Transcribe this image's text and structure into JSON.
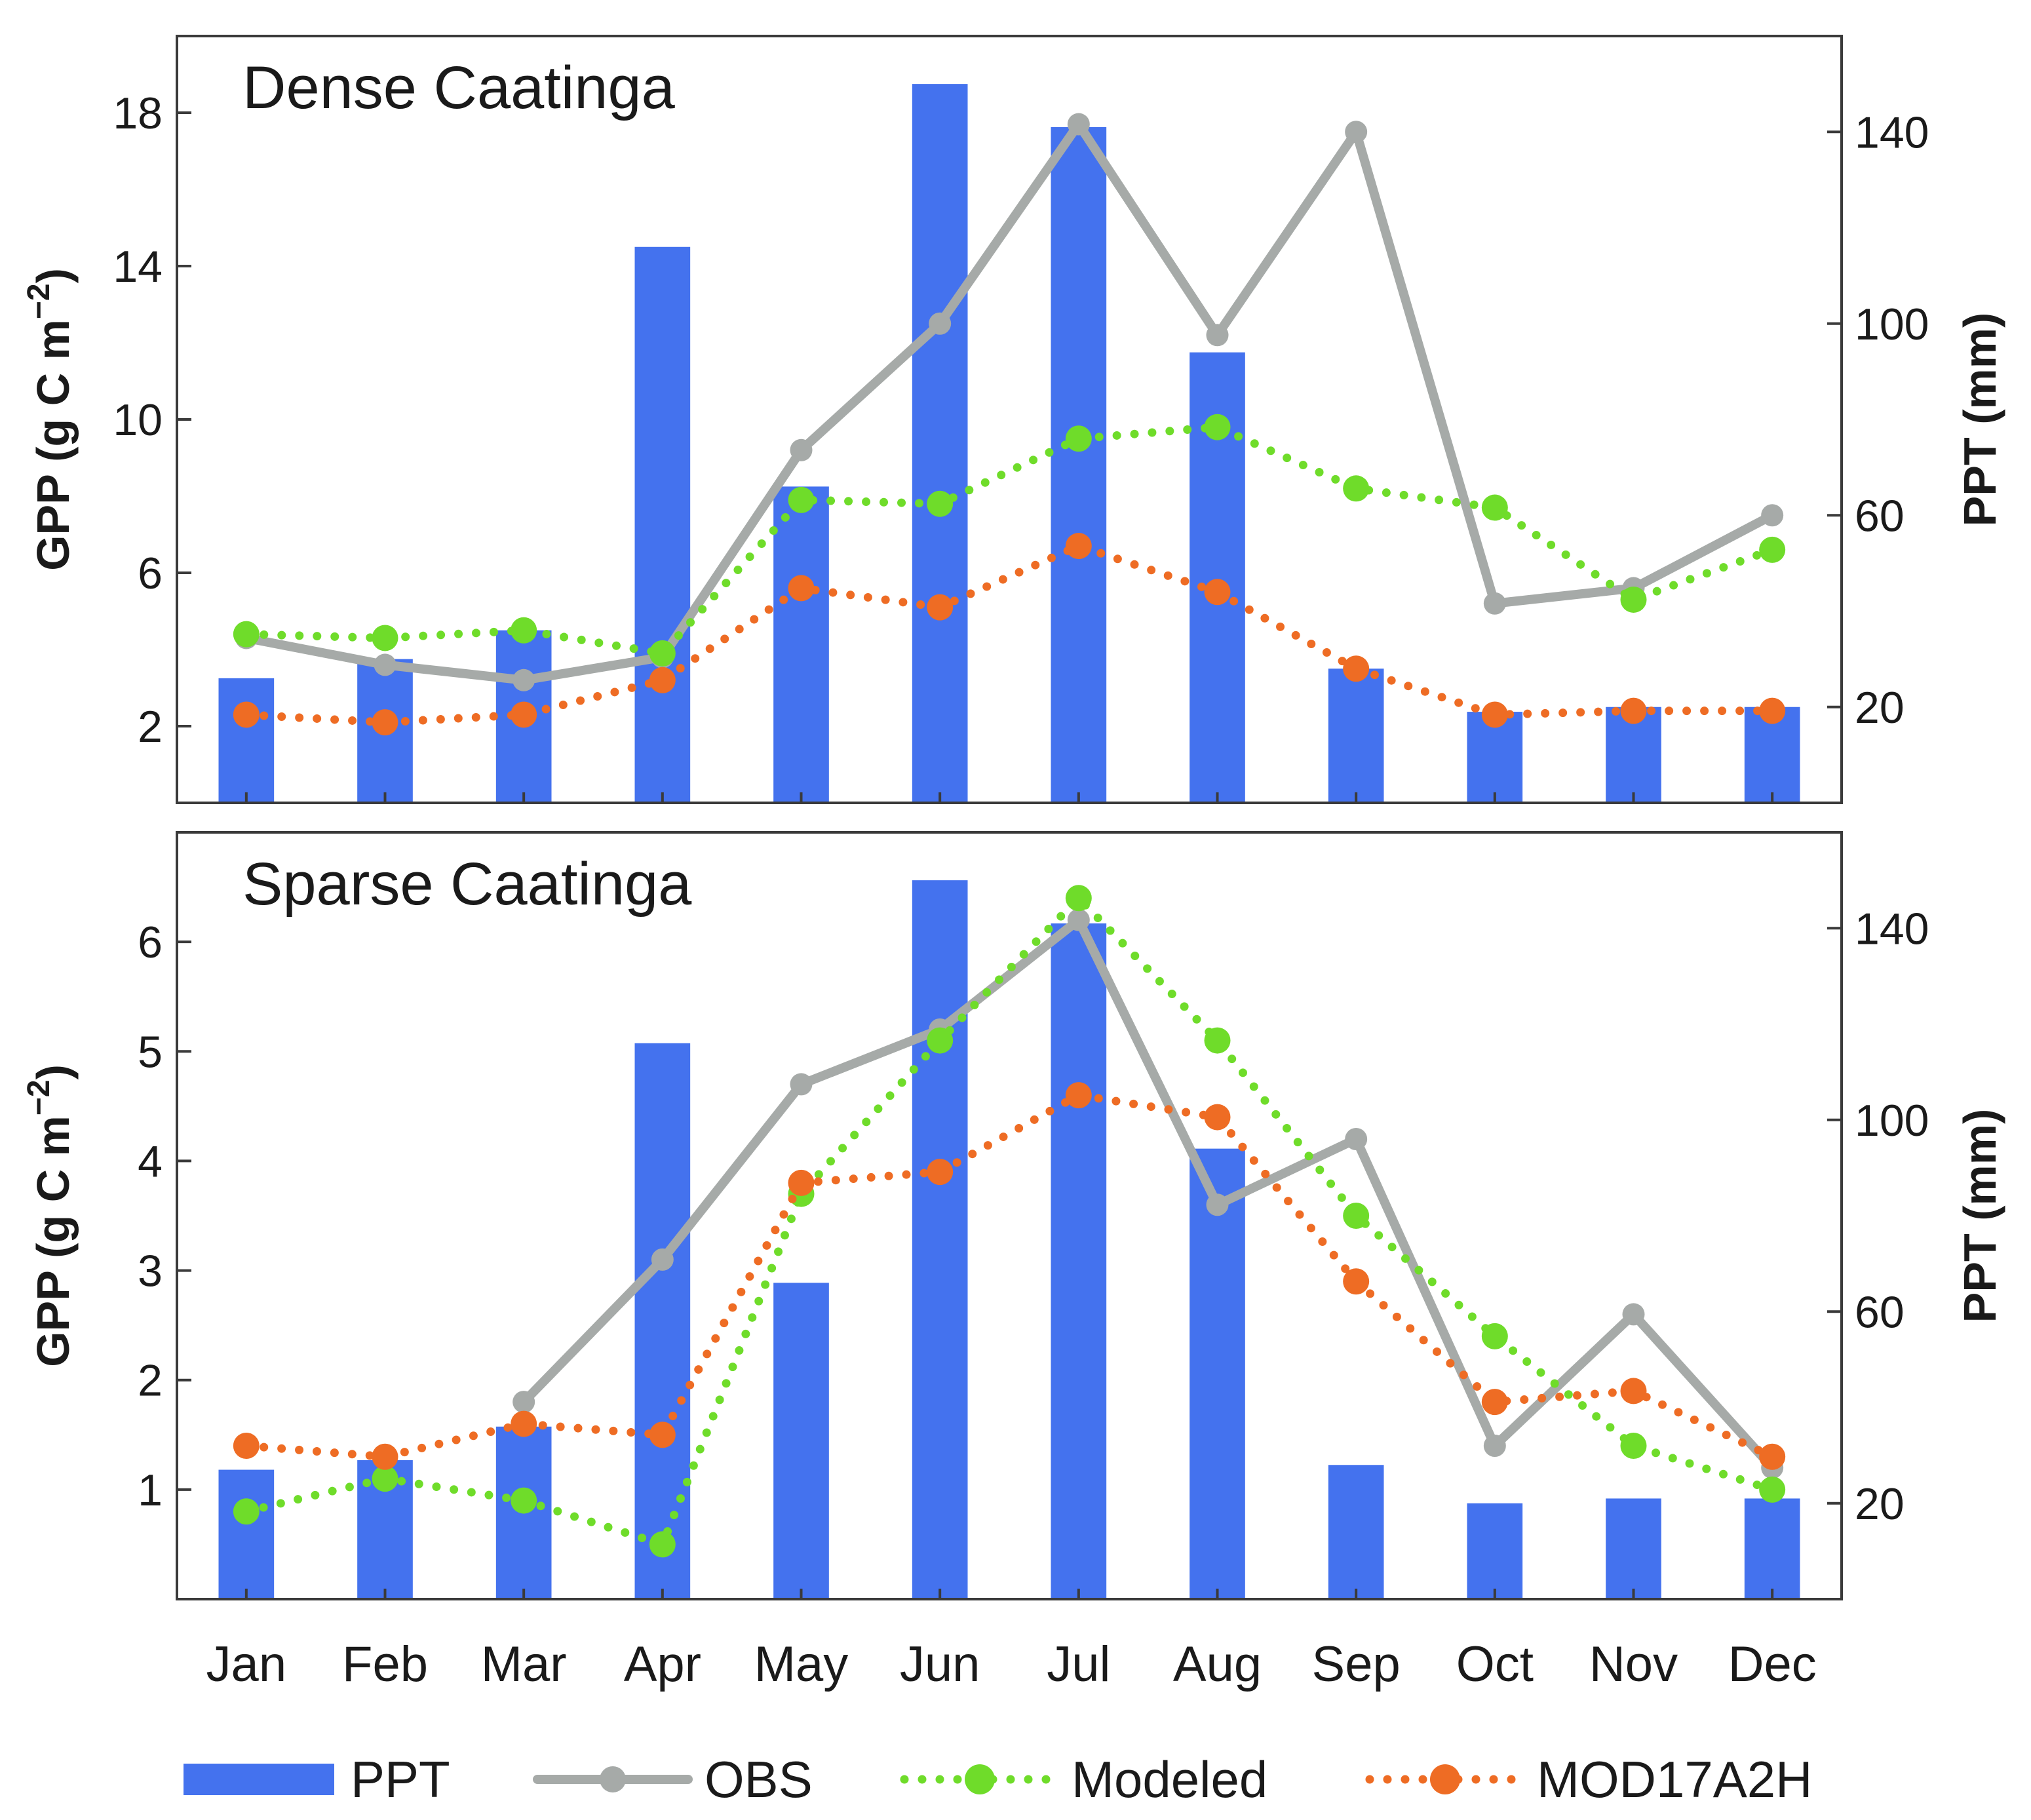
{
  "chart_data": [
    {
      "type": "bar+line",
      "title": "Dense Caatinga",
      "ylabel_left": "GPP (g C m−2)",
      "ylabel_right": "PPT (mm)",
      "ylim_left": [
        0,
        20
      ],
      "yticks_left": [
        2,
        6,
        10,
        14,
        18
      ],
      "ylim_right": [
        0,
        160
      ],
      "yticks_right": [
        20,
        60,
        100,
        140
      ],
      "categories": [
        "Jan",
        "Feb",
        "Mar",
        "Apr",
        "May",
        "Jun",
        "Jul",
        "Aug",
        "Sep",
        "Oct",
        "Nov",
        "Dec"
      ],
      "series": [
        {
          "name": "PPT",
          "kind": "bar",
          "axis": "right",
          "values": [
            26,
            30,
            36,
            116,
            66,
            150,
            141,
            94,
            28,
            19,
            20,
            20
          ]
        },
        {
          "name": "OBS",
          "kind": "line",
          "axis": "left",
          "values": [
            4.3,
            3.6,
            3.2,
            3.8,
            9.2,
            12.5,
            17.7,
            12.2,
            17.5,
            5.2,
            5.6,
            7.5
          ]
        },
        {
          "name": "Modeled",
          "kind": "dotted",
          "axis": "left",
          "values": [
            4.4,
            4.3,
            4.5,
            3.9,
            7.9,
            7.8,
            9.5,
            9.8,
            8.2,
            7.7,
            5.3,
            6.6
          ]
        },
        {
          "name": "MOD17A2H",
          "kind": "dotted",
          "axis": "left",
          "values": [
            2.3,
            2.1,
            2.3,
            3.2,
            5.6,
            5.1,
            6.7,
            5.5,
            3.5,
            2.3,
            2.4,
            2.4
          ]
        }
      ]
    },
    {
      "type": "bar+line",
      "title": "Sparse Caatinga",
      "ylabel_left": "GPP (g C m−2)",
      "ylabel_right": "PPT (mm)",
      "ylim_left": [
        0,
        7
      ],
      "yticks_left": [
        1,
        2,
        3,
        4,
        5,
        6
      ],
      "ylim_right": [
        0,
        160
      ],
      "yticks_right": [
        20,
        60,
        100,
        140
      ],
      "categories": [
        "Jan",
        "Feb",
        "Mar",
        "Apr",
        "May",
        "Jun",
        "Jul",
        "Aug",
        "Sep",
        "Oct",
        "Nov",
        "Dec"
      ],
      "series": [
        {
          "name": "PPT",
          "kind": "bar",
          "axis": "right",
          "values": [
            27,
            29,
            36,
            116,
            66,
            150,
            141,
            94,
            28,
            20,
            21,
            21
          ]
        },
        {
          "name": "OBS",
          "kind": "line",
          "axis": "left",
          "values": [
            null,
            null,
            1.8,
            3.1,
            4.7,
            5.2,
            6.2,
            3.6,
            4.2,
            1.4,
            2.6,
            1.2
          ]
        },
        {
          "name": "Modeled",
          "kind": "dotted",
          "axis": "left",
          "values": [
            0.8,
            1.1,
            0.9,
            0.5,
            3.7,
            5.1,
            6.4,
            5.1,
            3.5,
            2.4,
            1.4,
            1.0
          ]
        },
        {
          "name": "MOD17A2H",
          "kind": "dotted",
          "axis": "left",
          "values": [
            1.4,
            1.3,
            1.6,
            1.5,
            3.8,
            3.9,
            4.6,
            4.4,
            2.9,
            1.8,
            1.9,
            1.3
          ]
        }
      ]
    }
  ],
  "legend": [
    {
      "name": "PPT",
      "label": "PPT"
    },
    {
      "name": "OBS",
      "label": "OBS"
    },
    {
      "name": "Modeled",
      "label": "Modeled"
    },
    {
      "name": "MOD17A2H",
      "label": "MOD17A2H"
    }
  ],
  "colors": {
    "PPT": "#4472ee",
    "OBS": "#a6aaa8",
    "Modeled": "#6fdc2a",
    "MOD17A2H": "#ee6c24"
  }
}
